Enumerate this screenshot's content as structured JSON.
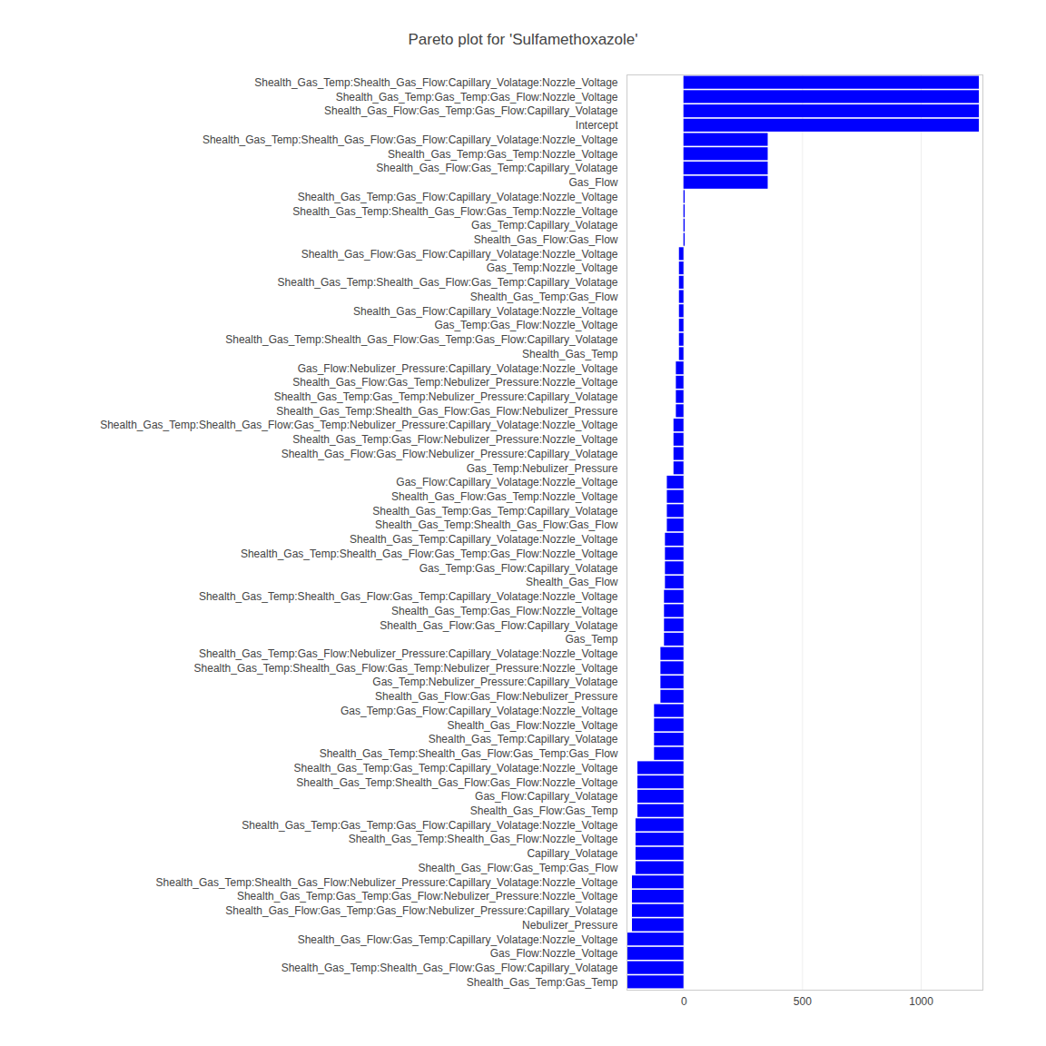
{
  "chart_data": {
    "type": "bar",
    "title": "Pareto plot for 'Sulfamethoxazole'",
    "orientation": "horizontal",
    "color": "#0000ff",
    "grid": true,
    "xlim": [
      -240,
      1260
    ],
    "xticks": [
      0,
      500,
      1000
    ],
    "categories": [
      "Shealth_Gas_Temp:Shealth_Gas_Flow:Capillary_Volatage:Nozzle_Voltage",
      "Shealth_Gas_Temp:Gas_Temp:Gas_Flow:Nozzle_Voltage",
      "Shealth_Gas_Flow:Gas_Temp:Gas_Flow:Capillary_Volatage",
      "Intercept",
      "Shealth_Gas_Temp:Shealth_Gas_Flow:Gas_Flow:Capillary_Volatage:Nozzle_Voltage",
      "Shealth_Gas_Temp:Gas_Temp:Nozzle_Voltage",
      "Shealth_Gas_Flow:Gas_Temp:Capillary_Volatage",
      "Gas_Flow",
      "Shealth_Gas_Temp:Gas_Flow:Capillary_Volatage:Nozzle_Voltage",
      "Shealth_Gas_Temp:Shealth_Gas_Flow:Gas_Temp:Nozzle_Voltage",
      "Gas_Temp:Capillary_Volatage",
      "Shealth_Gas_Flow:Gas_Flow",
      "Shealth_Gas_Flow:Gas_Flow:Capillary_Volatage:Nozzle_Voltage",
      "Gas_Temp:Nozzle_Voltage",
      "Shealth_Gas_Temp:Shealth_Gas_Flow:Gas_Temp:Capillary_Volatage",
      "Shealth_Gas_Temp:Gas_Flow",
      "Shealth_Gas_Flow:Capillary_Volatage:Nozzle_Voltage",
      "Gas_Temp:Gas_Flow:Nozzle_Voltage",
      "Shealth_Gas_Temp:Shealth_Gas_Flow:Gas_Temp:Gas_Flow:Capillary_Volatage",
      "Shealth_Gas_Temp",
      "Gas_Flow:Nebulizer_Pressure:Capillary_Volatage:Nozzle_Voltage",
      "Shealth_Gas_Flow:Gas_Temp:Nebulizer_Pressure:Nozzle_Voltage",
      "Shealth_Gas_Temp:Gas_Temp:Nebulizer_Pressure:Capillary_Volatage",
      "Shealth_Gas_Temp:Shealth_Gas_Flow:Gas_Flow:Nebulizer_Pressure",
      "Shealth_Gas_Temp:Shealth_Gas_Flow:Gas_Temp:Nebulizer_Pressure:Capillary_Volatage:Nozzle_Voltage",
      "Shealth_Gas_Temp:Gas_Flow:Nebulizer_Pressure:Nozzle_Voltage",
      "Shealth_Gas_Flow:Gas_Flow:Nebulizer_Pressure:Capillary_Volatage",
      "Gas_Temp:Nebulizer_Pressure",
      "Gas_Flow:Capillary_Volatage:Nozzle_Voltage",
      "Shealth_Gas_Flow:Gas_Temp:Nozzle_Voltage",
      "Shealth_Gas_Temp:Gas_Temp:Capillary_Volatage",
      "Shealth_Gas_Temp:Shealth_Gas_Flow:Gas_Flow",
      "Shealth_Gas_Temp:Capillary_Volatage:Nozzle_Voltage",
      "Shealth_Gas_Temp:Shealth_Gas_Flow:Gas_Temp:Gas_Flow:Nozzle_Voltage",
      "Gas_Temp:Gas_Flow:Capillary_Volatage",
      "Shealth_Gas_Flow",
      "Shealth_Gas_Temp:Shealth_Gas_Flow:Gas_Temp:Capillary_Volatage:Nozzle_Voltage",
      "Shealth_Gas_Temp:Gas_Flow:Nozzle_Voltage",
      "Shealth_Gas_Flow:Gas_Flow:Capillary_Volatage",
      "Gas_Temp",
      "Shealth_Gas_Temp:Gas_Flow:Nebulizer_Pressure:Capillary_Volatage:Nozzle_Voltage",
      "Shealth_Gas_Temp:Shealth_Gas_Flow:Gas_Temp:Nebulizer_Pressure:Nozzle_Voltage",
      "Gas_Temp:Nebulizer_Pressure:Capillary_Volatage",
      "Shealth_Gas_Flow:Gas_Flow:Nebulizer_Pressure",
      "Gas_Temp:Gas_Flow:Capillary_Volatage:Nozzle_Voltage",
      "Shealth_Gas_Flow:Nozzle_Voltage",
      "Shealth_Gas_Temp:Capillary_Volatage",
      "Shealth_Gas_Temp:Shealth_Gas_Flow:Gas_Temp:Gas_Flow",
      "Shealth_Gas_Temp:Gas_Temp:Capillary_Volatage:Nozzle_Voltage",
      "Shealth_Gas_Temp:Shealth_Gas_Flow:Gas_Flow:Nozzle_Voltage",
      "Gas_Flow:Capillary_Volatage",
      "Shealth_Gas_Flow:Gas_Temp",
      "Shealth_Gas_Temp:Gas_Temp:Gas_Flow:Capillary_Volatage:Nozzle_Voltage",
      "Shealth_Gas_Temp:Shealth_Gas_Flow:Nozzle_Voltage",
      "Capillary_Volatage",
      "Shealth_Gas_Flow:Gas_Temp:Gas_Flow",
      "Shealth_Gas_Temp:Shealth_Gas_Flow:Nebulizer_Pressure:Capillary_Volatage:Nozzle_Voltage",
      "Shealth_Gas_Temp:Gas_Temp:Gas_Flow:Nebulizer_Pressure:Nozzle_Voltage",
      "Shealth_Gas_Flow:Gas_Temp:Gas_Flow:Nebulizer_Pressure:Capillary_Volatage",
      "Nebulizer_Pressure",
      "Shealth_Gas_Flow:Gas_Temp:Capillary_Volatage:Nozzle_Voltage",
      "Gas_Flow:Nozzle_Voltage",
      "Shealth_Gas_Temp:Shealth_Gas_Flow:Gas_Flow:Capillary_Volatage",
      "Shealth_Gas_Temp:Gas_Temp"
    ],
    "values": [
      1245,
      1245,
      1245,
      1245,
      355,
      355,
      355,
      355,
      5,
      5,
      5,
      5,
      -19,
      -19,
      -19,
      -19,
      -19,
      -19,
      -19,
      -19,
      -32,
      -32,
      -32,
      -32,
      -42,
      -42,
      -42,
      -42,
      -70,
      -70,
      -70,
      -70,
      -78,
      -78,
      -78,
      -78,
      -82,
      -82,
      -82,
      -82,
      -97,
      -97,
      -97,
      -97,
      -124,
      -124,
      -124,
      -124,
      -194,
      -194,
      -194,
      -194,
      -202,
      -202,
      -202,
      -202,
      -217,
      -217,
      -217,
      -217,
      -236,
      -236,
      -236,
      -236
    ]
  }
}
